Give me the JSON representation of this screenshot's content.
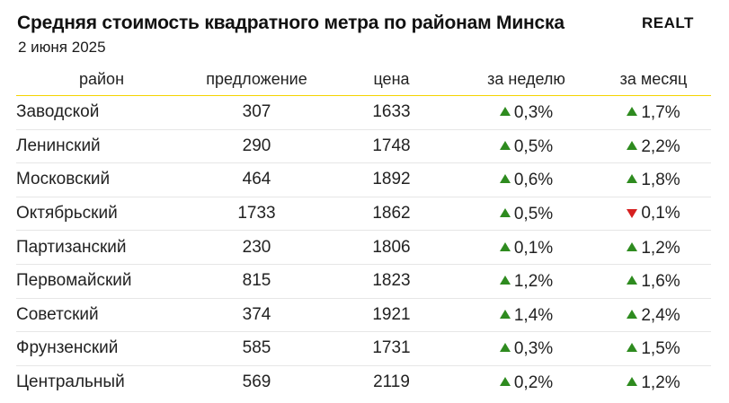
{
  "header": {
    "title": "Средняя стоимость квадратного метра по районам Минска",
    "date": "2 июня 2025",
    "logo": "REALT"
  },
  "colors": {
    "up": "#2e8b1f",
    "down": "#d62020",
    "accent_line": "#f5d400"
  },
  "table": {
    "columns": [
      "район",
      "предложение",
      "цена",
      "за неделю",
      "за месяц"
    ],
    "rows": [
      {
        "district": "Заводской",
        "offers": "307",
        "price": "1633",
        "week": "0,3%",
        "week_dir": "up",
        "month": "1,7%",
        "month_dir": "up"
      },
      {
        "district": "Ленинский",
        "offers": "290",
        "price": "1748",
        "week": "0,5%",
        "week_dir": "up",
        "month": "2,2%",
        "month_dir": "up"
      },
      {
        "district": "Московский",
        "offers": "464",
        "price": "1892",
        "week": "0,6%",
        "week_dir": "up",
        "month": "1,8%",
        "month_dir": "up"
      },
      {
        "district": "Октябрьский",
        "offers": "1733",
        "price": "1862",
        "week": "0,5%",
        "week_dir": "up",
        "month": "0,1%",
        "month_dir": "down"
      },
      {
        "district": "Партизанский",
        "offers": "230",
        "price": "1806",
        "week": "0,1%",
        "week_dir": "up",
        "month": "1,2%",
        "month_dir": "up"
      },
      {
        "district": "Первомайский",
        "offers": "815",
        "price": "1823",
        "week": "1,2%",
        "week_dir": "up",
        "month": "1,6%",
        "month_dir": "up"
      },
      {
        "district": "Советский",
        "offers": "374",
        "price": "1921",
        "week": "1,4%",
        "week_dir": "up",
        "month": "2,4%",
        "month_dir": "up"
      },
      {
        "district": "Фрунзенский",
        "offers": "585",
        "price": "1731",
        "week": "0,3%",
        "week_dir": "up",
        "month": "1,5%",
        "month_dir": "up"
      },
      {
        "district": "Центральный",
        "offers": "569",
        "price": "2119",
        "week": "0,2%",
        "week_dir": "up",
        "month": "1,2%",
        "month_dir": "up"
      }
    ]
  }
}
